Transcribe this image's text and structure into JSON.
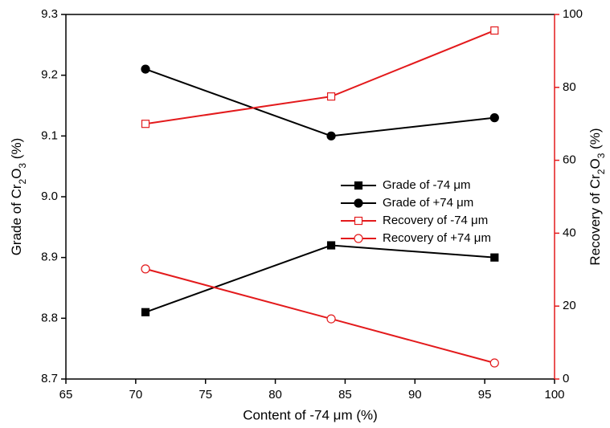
{
  "chart_data": {
    "type": "line",
    "xlabel": "Content of -74 μm (%)",
    "ylabel": "Grade of Cr2O3 (%)",
    "y2label": "Recovery of Cr2O3 (%)",
    "x": [
      70.7,
      84,
      95.7
    ],
    "xlim": [
      65,
      100
    ],
    "xticks": [
      65,
      70,
      75,
      80,
      85,
      90,
      95,
      100
    ],
    "ylim": [
      8.7,
      9.3
    ],
    "yticks": [
      8.7,
      8.8,
      8.9,
      {
        "value": 9,
        "label": "9.0"
      },
      9.1,
      9.2,
      9.3
    ],
    "y2lim": [
      0,
      100
    ],
    "y2ticks": [
      0,
      20,
      40,
      60,
      80,
      100
    ],
    "y2color": "#e31a1c",
    "series": [
      {
        "name": "Grade of -74 μm",
        "color": "#000000",
        "marker": "square",
        "filled": true,
        "values": [
          8.81,
          8.92,
          8.9
        ]
      },
      {
        "name": "Grade of +74 μm",
        "color": "#000000",
        "marker": "circle",
        "filled": true,
        "values": [
          9.21,
          9.1,
          9.13
        ]
      },
      {
        "name": "Recovery of -74 μm",
        "color": "#e31a1c",
        "marker": "square",
        "filled": false,
        "axis": "y2",
        "values": [
          70.0,
          77.5,
          95.6
        ]
      },
      {
        "name": "Recovery of +74 μm",
        "color": "#e31a1c",
        "marker": "circle",
        "filled": false,
        "axis": "y2",
        "values": [
          30.2,
          16.5,
          4.4
        ]
      }
    ]
  }
}
